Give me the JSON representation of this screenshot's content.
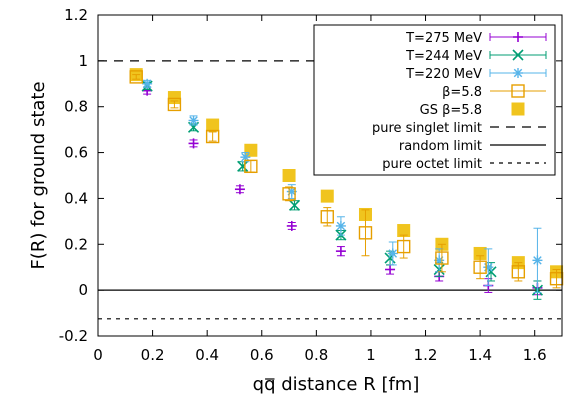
{
  "chart_data": {
    "type": "scatter",
    "xlabel_pre": "q",
    "xlabel_qbar": "q",
    "xlabel_post": " distance R [fm]",
    "ylabel": "F(R) for ground state",
    "xlim": [
      0,
      1.7
    ],
    "ylim": [
      -0.2,
      1.2
    ],
    "x_ticks": [
      0,
      0.2,
      0.4,
      0.6,
      0.8,
      1,
      1.2,
      1.4,
      1.6
    ],
    "x_tick_labels": [
      "0",
      "0.2",
      "0.4",
      "0.6",
      "0.8",
      "1",
      "1.2",
      "1.4",
      "1.6"
    ],
    "y_ticks": [
      -0.2,
      0,
      0.2,
      0.4,
      0.6,
      0.8,
      1,
      1.2
    ],
    "y_tick_labels": [
      "-0.2",
      "0",
      "0.2",
      "0.4",
      "0.6",
      "0.8",
      "1",
      "1.2"
    ],
    "legend_position": "top-right",
    "series": [
      {
        "name": "T=275 MeV",
        "color": "#9400d3",
        "marker": "plus",
        "x": [
          0.18,
          0.35,
          0.52,
          0.71,
          0.89,
          1.07,
          1.25,
          1.43,
          1.61
        ],
        "y": [
          0.87,
          0.64,
          0.44,
          0.28,
          0.17,
          0.09,
          0.06,
          0.02,
          0.01
        ],
        "err": [
          0.015,
          0.015,
          0.015,
          0.015,
          0.02,
          0.02,
          0.02,
          0.03,
          0.03
        ]
      },
      {
        "name": "T=244 MeV",
        "color": "#009e73",
        "marker": "x",
        "x": [
          0.18,
          0.35,
          0.53,
          0.72,
          0.89,
          1.07,
          1.25,
          1.44,
          1.61
        ],
        "y": [
          0.89,
          0.71,
          0.54,
          0.37,
          0.24,
          0.14,
          0.09,
          0.08,
          0.0
        ],
        "err": [
          0.015,
          0.015,
          0.02,
          0.02,
          0.02,
          0.03,
          0.03,
          0.04,
          0.04
        ]
      },
      {
        "name": "T=220 MeV",
        "color": "#56b4e9",
        "marker": "star",
        "x": [
          0.18,
          0.35,
          0.54,
          0.71,
          0.89,
          1.08,
          1.25,
          1.43,
          1.61
        ],
        "y": [
          0.9,
          0.74,
          0.58,
          0.43,
          0.28,
          0.16,
          0.13,
          0.1,
          0.13
        ],
        "err": [
          0.015,
          0.02,
          0.02,
          0.03,
          0.04,
          0.05,
          0.05,
          0.08,
          0.14
        ]
      },
      {
        "name": "β=5.8",
        "color": "#e69f00",
        "marker": "square-open",
        "x": [
          0.14,
          0.28,
          0.42,
          0.56,
          0.7,
          0.84,
          0.98,
          1.12,
          1.26,
          1.4,
          1.54,
          1.68
        ],
        "y": [
          0.93,
          0.81,
          0.67,
          0.54,
          0.42,
          0.32,
          0.25,
          0.19,
          0.14,
          0.1,
          0.08,
          0.05
        ],
        "err": [
          0.01,
          0.015,
          0.02,
          0.025,
          0.03,
          0.04,
          0.1,
          0.05,
          0.06,
          0.05,
          0.04,
          0.04
        ]
      },
      {
        "name": "GS β=5.8",
        "color": "#f0c41e",
        "marker": "square-filled",
        "x": [
          0.14,
          0.28,
          0.42,
          0.56,
          0.7,
          0.84,
          0.98,
          1.12,
          1.26,
          1.4,
          1.54,
          1.68
        ],
        "y": [
          0.94,
          0.84,
          0.72,
          0.61,
          0.5,
          0.41,
          0.33,
          0.26,
          0.2,
          0.16,
          0.12,
          0.08
        ],
        "err": []
      }
    ],
    "reference_lines": [
      {
        "name": "pure singlet limit",
        "y": 1.0,
        "style": "dashed"
      },
      {
        "name": "random limit",
        "y": 0.0,
        "style": "solid"
      },
      {
        "name": "pure octet limit",
        "y": -0.125,
        "style": "dotted"
      }
    ]
  }
}
